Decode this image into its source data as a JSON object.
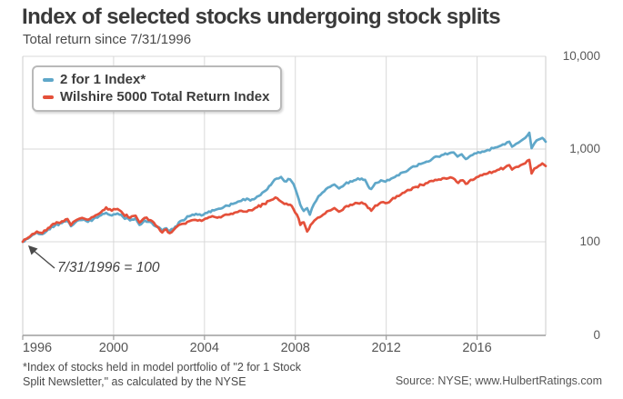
{
  "page": {
    "title": "Index of selected stocks undergoing stock splits",
    "subtitle": "Total return since 7/31/1996"
  },
  "annotation": {
    "text": "7/31/1996 = 100"
  },
  "footnote": {
    "line1": "*Index of stocks held in model portfolio of \"2 for 1 Stock",
    "line2": "Split Newsletter,\" as calculated by the NYSE"
  },
  "source": "Source: NYSE; www.HulbertRatings.com",
  "colors": {
    "blue_series": "#5fa7c9",
    "red_series": "#e4503a",
    "gridline": "#d9d9d9",
    "plot_border": "#cccccc",
    "axis_line": "#9e9e9e",
    "tick_text": "#555555",
    "arrow": "#4a4a4a"
  },
  "chart_data": {
    "type": "line",
    "title": "Index of selected stocks undergoing stock splits",
    "subtitle": "Total return since 7/31/1996",
    "xlabel": "",
    "ylabel": "",
    "x_axis": {
      "unit": "decimal_year",
      "start": 1996.58,
      "end": 2019.6,
      "ticks": [
        1996,
        2000,
        2004,
        2008,
        2012,
        2016
      ]
    },
    "y_axis": {
      "scale": "log",
      "side": "right",
      "ticks": [
        {
          "label": "10,000",
          "value": 10000
        },
        {
          "label": "1,000",
          "value": 1000
        },
        {
          "label": "100",
          "value": 100
        },
        {
          "label": "0",
          "value": 0
        }
      ]
    },
    "grid": true,
    "legend_position": "top-left",
    "base_note": "7/31/1996 = 100",
    "series": [
      {
        "name": "2 for 1 Index*",
        "color": "#5fa7c9",
        "points": [
          [
            1996.58,
            100
          ],
          [
            1996.8,
            108
          ],
          [
            1997.0,
            118
          ],
          [
            1997.2,
            126
          ],
          [
            1997.45,
            121
          ],
          [
            1997.7,
            136
          ],
          [
            1998.0,
            150
          ],
          [
            1998.3,
            159
          ],
          [
            1998.55,
            168
          ],
          [
            1998.7,
            147
          ],
          [
            1998.9,
            162
          ],
          [
            1999.2,
            172
          ],
          [
            1999.45,
            164
          ],
          [
            1999.7,
            177
          ],
          [
            1999.95,
            190
          ],
          [
            2000.25,
            205
          ],
          [
            2000.5,
            192
          ],
          [
            2000.75,
            202
          ],
          [
            2001.0,
            185
          ],
          [
            2001.3,
            170
          ],
          [
            2001.55,
            180
          ],
          [
            2001.72,
            152
          ],
          [
            2001.95,
            170
          ],
          [
            2002.2,
            164
          ],
          [
            2002.5,
            144
          ],
          [
            2002.72,
            132
          ],
          [
            2002.9,
            140
          ],
          [
            2003.05,
            131
          ],
          [
            2003.3,
            146
          ],
          [
            2003.6,
            170
          ],
          [
            2003.9,
            188
          ],
          [
            2004.2,
            200
          ],
          [
            2004.45,
            192
          ],
          [
            2004.7,
            205
          ],
          [
            2005.0,
            218
          ],
          [
            2005.3,
            228
          ],
          [
            2005.6,
            245
          ],
          [
            2005.9,
            260
          ],
          [
            2006.2,
            276
          ],
          [
            2006.45,
            292
          ],
          [
            2006.6,
            278
          ],
          [
            2006.9,
            308
          ],
          [
            2007.2,
            348
          ],
          [
            2007.5,
            410
          ],
          [
            2007.75,
            480
          ],
          [
            2007.95,
            500
          ],
          [
            2008.1,
            450
          ],
          [
            2008.35,
            470
          ],
          [
            2008.5,
            420
          ],
          [
            2008.65,
            330
          ],
          [
            2008.8,
            250
          ],
          [
            2008.95,
            215
          ],
          [
            2009.1,
            230
          ],
          [
            2009.22,
            196
          ],
          [
            2009.4,
            255
          ],
          [
            2009.6,
            310
          ],
          [
            2009.85,
            350
          ],
          [
            2010.1,
            390
          ],
          [
            2010.3,
            415
          ],
          [
            2010.5,
            375
          ],
          [
            2010.75,
            415
          ],
          [
            2011.0,
            450
          ],
          [
            2011.25,
            465
          ],
          [
            2011.5,
            480
          ],
          [
            2011.65,
            465
          ],
          [
            2011.78,
            400
          ],
          [
            2011.92,
            370
          ],
          [
            2012.1,
            430
          ],
          [
            2012.35,
            460
          ],
          [
            2012.55,
            445
          ],
          [
            2012.8,
            480
          ],
          [
            2013.05,
            520
          ],
          [
            2013.3,
            560
          ],
          [
            2013.6,
            610
          ],
          [
            2013.85,
            650
          ],
          [
            2014.1,
            690
          ],
          [
            2014.35,
            730
          ],
          [
            2014.6,
            780
          ],
          [
            2014.85,
            830
          ],
          [
            2015.1,
            870
          ],
          [
            2015.35,
            900
          ],
          [
            2015.55,
            920
          ],
          [
            2015.72,
            830
          ],
          [
            2015.9,
            880
          ],
          [
            2016.08,
            780
          ],
          [
            2016.3,
            850
          ],
          [
            2016.55,
            900
          ],
          [
            2016.8,
            940
          ],
          [
            2017.05,
            980
          ],
          [
            2017.3,
            1020
          ],
          [
            2017.55,
            1070
          ],
          [
            2017.8,
            1120
          ],
          [
            2018.0,
            1200
          ],
          [
            2018.12,
            1060
          ],
          [
            2018.3,
            1140
          ],
          [
            2018.5,
            1220
          ],
          [
            2018.7,
            1320
          ],
          [
            2018.88,
            1500
          ],
          [
            2018.98,
            1020
          ],
          [
            2019.1,
            1150
          ],
          [
            2019.3,
            1270
          ],
          [
            2019.45,
            1320
          ],
          [
            2019.6,
            1200
          ]
        ]
      },
      {
        "name": "Wilshire 5000 Total Return Index",
        "color": "#e4503a",
        "points": [
          [
            1996.58,
            100
          ],
          [
            1996.8,
            110
          ],
          [
            1997.0,
            121
          ],
          [
            1997.2,
            129
          ],
          [
            1997.45,
            124
          ],
          [
            1997.7,
            141
          ],
          [
            1998.0,
            156
          ],
          [
            1998.3,
            166
          ],
          [
            1998.55,
            176
          ],
          [
            1998.7,
            151
          ],
          [
            1998.9,
            169
          ],
          [
            1999.2,
            181
          ],
          [
            1999.45,
            173
          ],
          [
            1999.7,
            186
          ],
          [
            1999.95,
            202
          ],
          [
            2000.25,
            235
          ],
          [
            2000.5,
            216
          ],
          [
            2000.75,
            226
          ],
          [
            2001.0,
            200
          ],
          [
            2001.3,
            181
          ],
          [
            2001.55,
            191
          ],
          [
            2001.72,
            161
          ],
          [
            2001.95,
            181
          ],
          [
            2002.2,
            171
          ],
          [
            2002.5,
            146
          ],
          [
            2002.72,
            126
          ],
          [
            2002.9,
            136
          ],
          [
            2003.05,
            124
          ],
          [
            2003.3,
            141
          ],
          [
            2003.6,
            156
          ],
          [
            2003.9,
            166
          ],
          [
            2004.2,
            172
          ],
          [
            2004.45,
            168
          ],
          [
            2004.7,
            179
          ],
          [
            2005.0,
            186
          ],
          [
            2005.3,
            183
          ],
          [
            2005.6,
            196
          ],
          [
            2005.9,
            206
          ],
          [
            2006.2,
            216
          ],
          [
            2006.45,
            211
          ],
          [
            2006.6,
            219
          ],
          [
            2006.9,
            236
          ],
          [
            2007.2,
            256
          ],
          [
            2007.5,
            281
          ],
          [
            2007.7,
            300
          ],
          [
            2007.95,
            272
          ],
          [
            2008.1,
            256
          ],
          [
            2008.35,
            251
          ],
          [
            2008.5,
            225
          ],
          [
            2008.65,
            196
          ],
          [
            2008.8,
            152
          ],
          [
            2008.95,
            162
          ],
          [
            2009.1,
            129
          ],
          [
            2009.25,
            152
          ],
          [
            2009.5,
            176
          ],
          [
            2009.8,
            196
          ],
          [
            2010.05,
            216
          ],
          [
            2010.3,
            231
          ],
          [
            2010.5,
            211
          ],
          [
            2010.75,
            236
          ],
          [
            2011.0,
            251
          ],
          [
            2011.3,
            261
          ],
          [
            2011.5,
            266
          ],
          [
            2011.65,
            256
          ],
          [
            2011.78,
            231
          ],
          [
            2011.92,
            216
          ],
          [
            2012.1,
            246
          ],
          [
            2012.35,
            266
          ],
          [
            2012.55,
            261
          ],
          [
            2012.8,
            281
          ],
          [
            2013.05,
            311
          ],
          [
            2013.3,
            336
          ],
          [
            2013.6,
            361
          ],
          [
            2013.9,
            391
          ],
          [
            2014.15,
            411
          ],
          [
            2014.4,
            431
          ],
          [
            2014.65,
            451
          ],
          [
            2014.9,
            471
          ],
          [
            2015.15,
            486
          ],
          [
            2015.4,
            496
          ],
          [
            2015.6,
            471
          ],
          [
            2015.75,
            431
          ],
          [
            2015.95,
            461
          ],
          [
            2016.08,
            421
          ],
          [
            2016.3,
            466
          ],
          [
            2016.55,
            496
          ],
          [
            2016.8,
            521
          ],
          [
            2017.05,
            546
          ],
          [
            2017.3,
            571
          ],
          [
            2017.55,
            601
          ],
          [
            2017.8,
            631
          ],
          [
            2018.0,
            671
          ],
          [
            2018.12,
            601
          ],
          [
            2018.3,
            641
          ],
          [
            2018.5,
            671
          ],
          [
            2018.7,
            701
          ],
          [
            2018.88,
            765
          ],
          [
            2018.98,
            545
          ],
          [
            2019.1,
            615
          ],
          [
            2019.3,
            660
          ],
          [
            2019.45,
            700
          ],
          [
            2019.6,
            655
          ]
        ]
      }
    ]
  }
}
